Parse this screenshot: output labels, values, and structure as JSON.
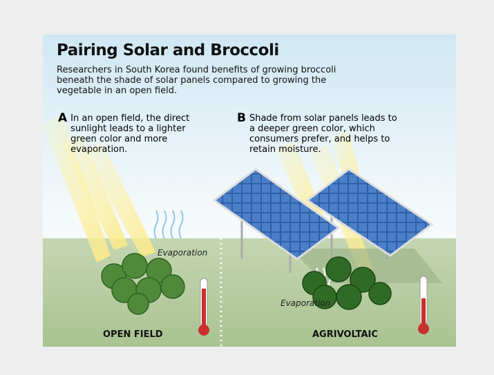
{
  "header": {
    "title": "Pairing Solar and Broccoli",
    "subtitle": "Researchers in South Korea found benefits of growing broccoli beneath the shade of solar panels compared to growing the vegetable in an open field."
  },
  "sections": [
    {
      "letter": "A",
      "text": "In an open field, the direct sunlight leads to a lighter green color and more evaporation.",
      "evaporation_label": "Evaporation",
      "footer_label": "OPEN FIELD"
    },
    {
      "letter": "B",
      "text": "Shade from solar panels leads to a deeper green color, which consumers prefer, and helps to retain moisture.",
      "evaporation_label": "Evaporation",
      "footer_label": "AGRIVOLTAIC"
    }
  ]
}
